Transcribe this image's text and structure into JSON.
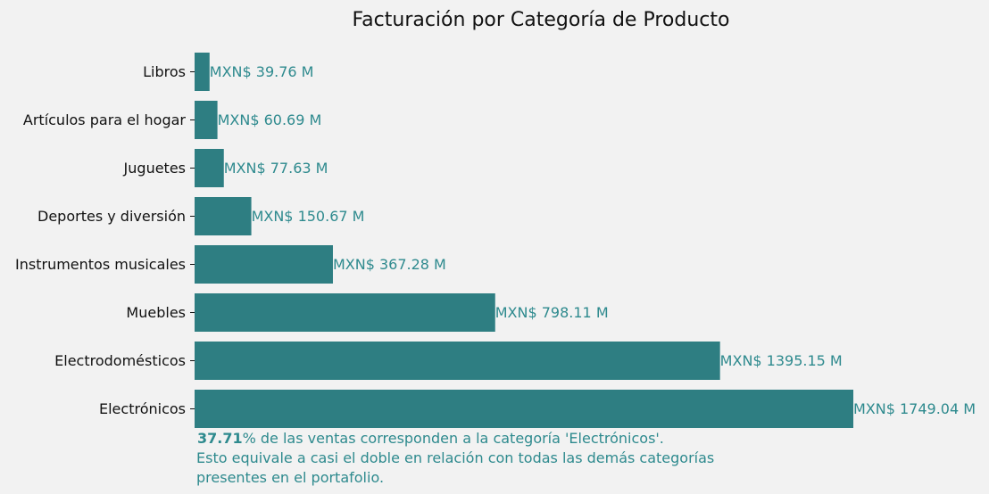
{
  "chart_data": {
    "type": "bar",
    "orientation": "horizontal",
    "title": "Facturación por Categoría de Producto",
    "xlabel": "",
    "ylabel": "",
    "grid": false,
    "categories": [
      "Libros",
      "Artículos para el hogar",
      "Juguetes",
      "Deportes y diversión",
      "Instrumentos musicales",
      "Muebles",
      "Electrodomésticos",
      "Electrónicos"
    ],
    "values": [
      39.76,
      60.69,
      77.63,
      150.67,
      367.28,
      798.11,
      1395.15,
      1749.04
    ],
    "data_labels": [
      "MXN$ 39.76 M",
      "MXN$ 60.69 M",
      "MXN$ 77.63 M",
      "MXN$ 150.67 M",
      "MXN$ 367.28 M",
      "MXN$ 798.11 M",
      "MXN$ 1395.15 M",
      "MXN$ 1749.04 M"
    ],
    "annotation": {
      "highlight": "37.71",
      "line1_rest": "% de las ventas corresponden a la categoría 'Electrónicos'.",
      "line2": "Esto equivale a casi el doble en relación con todas las demás categorías",
      "line3": "presentes en el portafolio."
    }
  },
  "colors": {
    "bar": "#2e7e82",
    "label": "#2e8a8e",
    "background": "#f2f2f2",
    "text": "#111111"
  }
}
